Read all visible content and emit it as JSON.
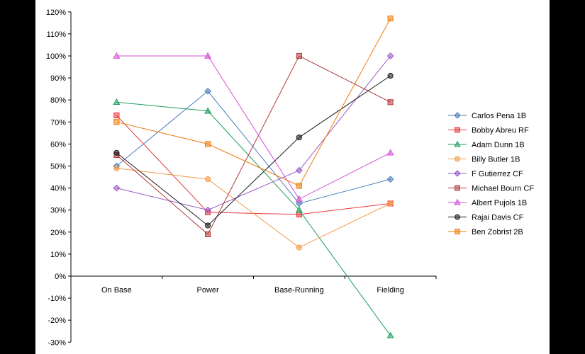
{
  "chart_data": {
    "type": "line",
    "title": "",
    "xlabel": "",
    "ylabel": "",
    "categories": [
      "On Base",
      "Power",
      "Base-Running",
      "Fielding"
    ],
    "ylim": [
      -30,
      120
    ],
    "ytick_step": 10,
    "y_tick_labels": [
      "-30%",
      "-20%",
      "-10%",
      "0%",
      "10%",
      "20%",
      "30%",
      "40%",
      "50%",
      "60%",
      "70%",
      "80%",
      "90%",
      "100%",
      "110%",
      "120%"
    ],
    "grid": false,
    "legend_position": "right",
    "series": [
      {
        "name": "Carlos Pena 1B",
        "values": [
          50,
          84,
          33,
          44
        ],
        "color": "#4a7ebb",
        "marker": "diamond"
      },
      {
        "name": "Bobby Abreu RF",
        "values": [
          73,
          29,
          28,
          33
        ],
        "color": "#e8393b",
        "marker": "square"
      },
      {
        "name": "Adam Dunn 1B",
        "values": [
          79,
          75,
          30,
          -27
        ],
        "color": "#1f9e5c",
        "marker": "triangle"
      },
      {
        "name": "Billy Butler 1B",
        "values": [
          49,
          44,
          13,
          33
        ],
        "color": "#f59a4a",
        "marker": "circle"
      },
      {
        "name": "F Gutierrez CF",
        "values": [
          40,
          30,
          48,
          100
        ],
        "color": "#9a5ac8",
        "marker": "diamond"
      },
      {
        "name": "Michael Bourn CF",
        "values": [
          55,
          19,
          100,
          79
        ],
        "color": "#b23a3a",
        "marker": "square"
      },
      {
        "name": "Albert Pujols 1B",
        "values": [
          100,
          100,
          35,
          56
        ],
        "color": "#d64fd6",
        "marker": "triangle"
      },
      {
        "name": "Rajai Davis CF",
        "values": [
          56,
          23,
          63,
          91
        ],
        "color": "#1a1a1a",
        "marker": "circle"
      },
      {
        "name": "Ben Zobrist 2B",
        "values": [
          70,
          60,
          41,
          117
        ],
        "color": "#f07c0a",
        "marker": "square"
      }
    ]
  }
}
